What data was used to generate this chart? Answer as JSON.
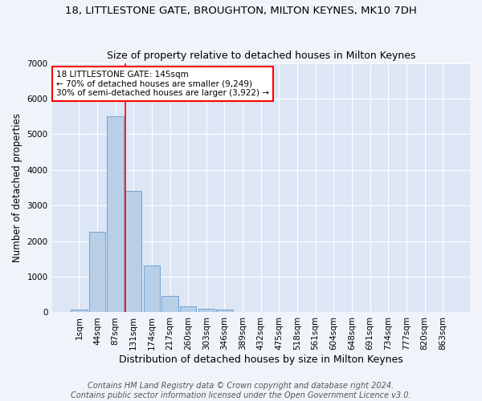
{
  "title": "18, LITTLESTONE GATE, BROUGHTON, MILTON KEYNES, MK10 7DH",
  "subtitle": "Size of property relative to detached houses in Milton Keynes",
  "xlabel": "Distribution of detached houses by size in Milton Keynes",
  "ylabel": "Number of detached properties",
  "footer_line1": "Contains HM Land Registry data © Crown copyright and database right 2024.",
  "footer_line2": "Contains public sector information licensed under the Open Government Licence v3.0.",
  "bar_labels": [
    "1sqm",
    "44sqm",
    "87sqm",
    "131sqm",
    "174sqm",
    "217sqm",
    "260sqm",
    "303sqm",
    "346sqm",
    "389sqm",
    "432sqm",
    "475sqm",
    "518sqm",
    "561sqm",
    "604sqm",
    "648sqm",
    "691sqm",
    "734sqm",
    "777sqm",
    "820sqm",
    "863sqm"
  ],
  "bar_values": [
    75,
    2270,
    5500,
    3420,
    1310,
    460,
    160,
    90,
    75,
    0,
    0,
    0,
    0,
    0,
    0,
    0,
    0,
    0,
    0,
    0,
    0
  ],
  "bar_color": "#b8cfe8",
  "bar_edgecolor": "#6699cc",
  "vline_color": "red",
  "vline_pos": 2.55,
  "annotation_line1": "18 LITTLESTONE GATE: 145sqm",
  "annotation_line2": "← 70% of detached houses are smaller (9,249)",
  "annotation_line3": "30% of semi-detached houses are larger (3,922) →",
  "annotation_box_color": "white",
  "annotation_box_edgecolor": "red",
  "ylim": [
    0,
    7000
  ],
  "background_color": "#f0f4fa",
  "plot_bg_color": "#dce6f5",
  "title_fontsize": 9.5,
  "subtitle_fontsize": 9,
  "xlabel_fontsize": 9,
  "ylabel_fontsize": 8.5,
  "tick_fontsize": 7.5,
  "footer_fontsize": 7
}
